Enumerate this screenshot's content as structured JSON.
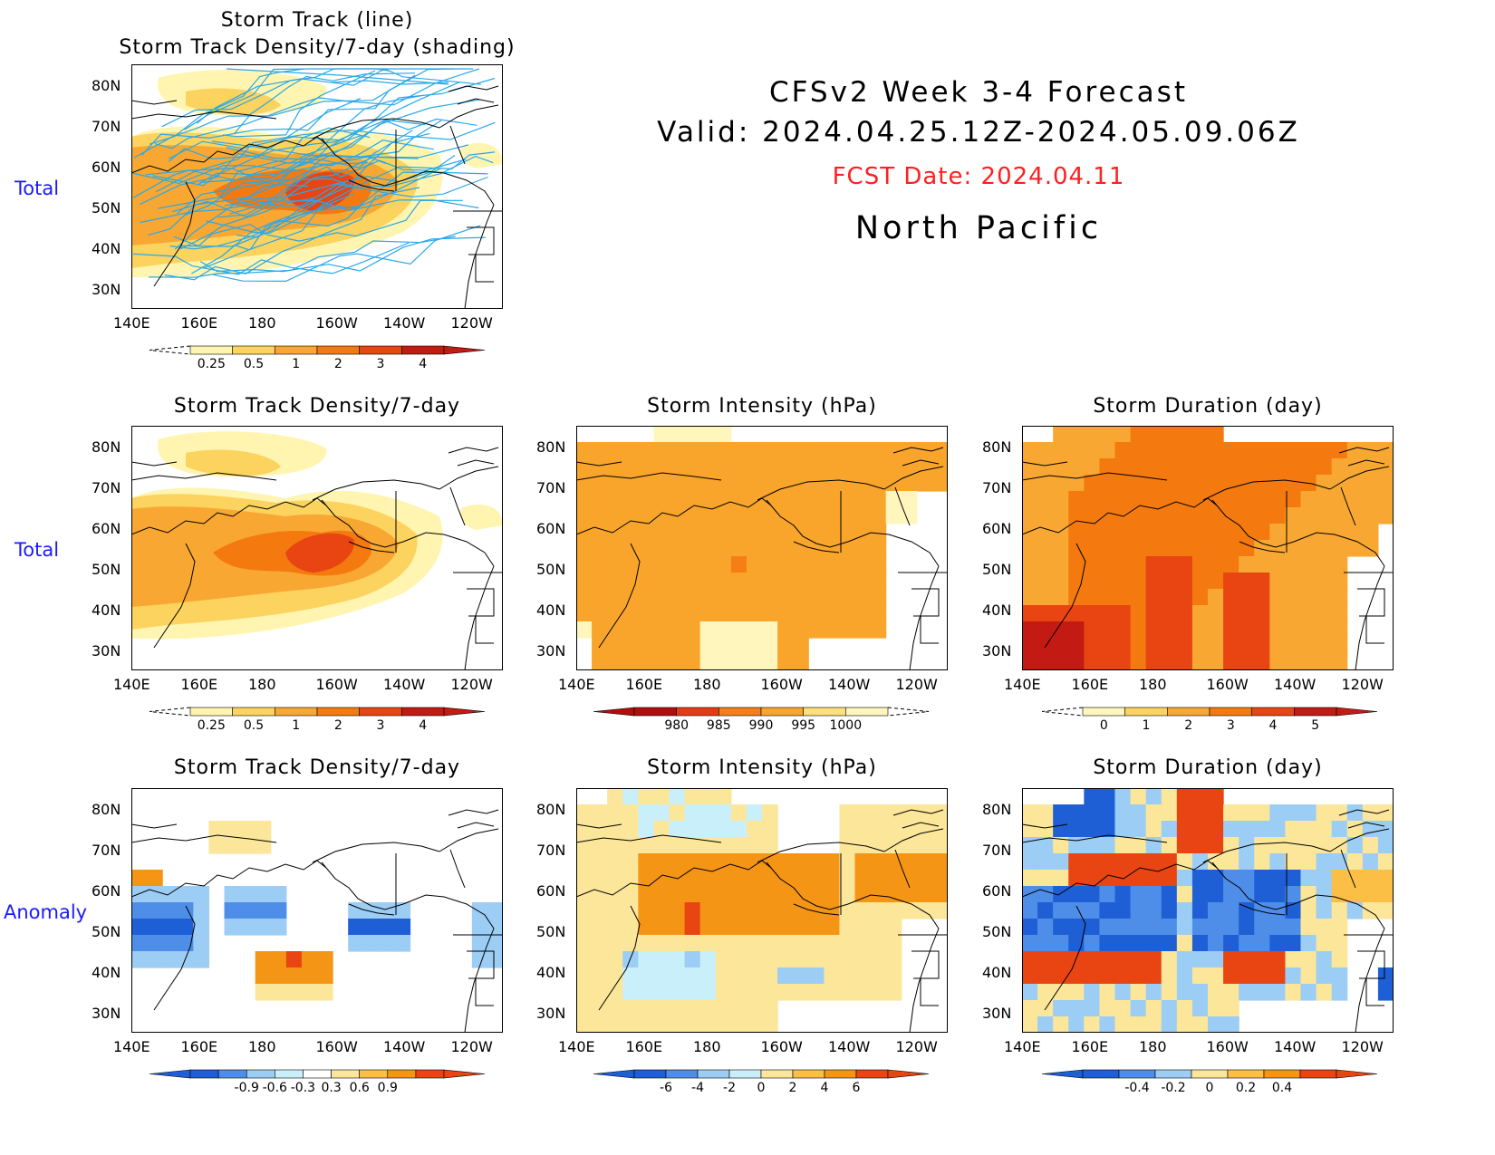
{
  "header": {
    "title": "CFSv2 Week 3-4 Forecast",
    "valid": "Valid: 2024.04.25.12Z-2024.05.09.06Z",
    "fcst_date": "FCST Date: 2024.04.11",
    "region": "North Pacific"
  },
  "row_labels": {
    "row1": "Total",
    "row2": "Total",
    "row3": "Anomaly"
  },
  "axes": {
    "lat_labels": [
      "80N",
      "70N",
      "60N",
      "50N",
      "40N",
      "30N"
    ],
    "lon_labels": [
      "140E",
      "160E",
      "180",
      "160W",
      "140W",
      "120W"
    ]
  },
  "panels": {
    "track_total": {
      "title1": "Storm Track (line)",
      "title2": "Storm Track Density/7-day (shading)"
    },
    "density_total": {
      "title": "Storm Track Density/7-day"
    },
    "intensity_total": {
      "title": "Storm Intensity (hPa)"
    },
    "duration_total": {
      "title": "Storm Duration (day)"
    },
    "density_anom": {
      "title": "Storm Track Density/7-day"
    },
    "intensity_anom": {
      "title": "Storm Intensity (hPa)"
    },
    "duration_anom": {
      "title": "Storm Duration (day)"
    }
  },
  "colorbars": {
    "density": {
      "labels": [
        "0.25",
        "0.5",
        "1",
        "2",
        "3",
        "4"
      ],
      "colors": [
        "#fff5b0",
        "#fbd35e",
        "#f8a832",
        "#f47a10",
        "#e84512",
        "#c41a14"
      ]
    },
    "intensity": {
      "labels": [
        "980",
        "985",
        "990",
        "995",
        "1000"
      ],
      "colors": [
        "#b20d0d",
        "#e63a14",
        "#f57f14",
        "#f9a52b",
        "#fde07a",
        "#fff6bd"
      ]
    },
    "duration": {
      "labels": [
        "0",
        "1",
        "2",
        "3",
        "4",
        "5"
      ],
      "colors": [
        "#fff6bd",
        "#fbd35e",
        "#f8a832",
        "#f47a10",
        "#e84512",
        "#c41a14"
      ]
    },
    "density_anom": {
      "labels": [
        "-0.9",
        "-0.6",
        "-0.3",
        "0.3",
        "0.6",
        "0.9"
      ],
      "colors": [
        "#1f5fd6",
        "#4f8ee8",
        "#9ccdf5",
        "#c9f0fa",
        "#ffffff",
        "#fbe69a",
        "#fbbf46",
        "#f59516",
        "#e84512"
      ]
    },
    "intensity_anom": {
      "labels": [
        "-6",
        "-4",
        "-2",
        "0",
        "2",
        "4",
        "6"
      ],
      "colors": [
        "#1f5fd6",
        "#4f8ee8",
        "#9ccdf5",
        "#c9f0fa",
        "#fbe69a",
        "#fbbf46",
        "#f59516",
        "#e84512"
      ]
    },
    "duration_anom": {
      "labels": [
        "-0.4",
        "-0.2",
        "0",
        "0.2",
        "0.4"
      ],
      "colors": [
        "#1f5fd6",
        "#4f8ee8",
        "#9ccdf5",
        "#fbe69a",
        "#fbbf46",
        "#f59516",
        "#e84512"
      ]
    }
  }
}
